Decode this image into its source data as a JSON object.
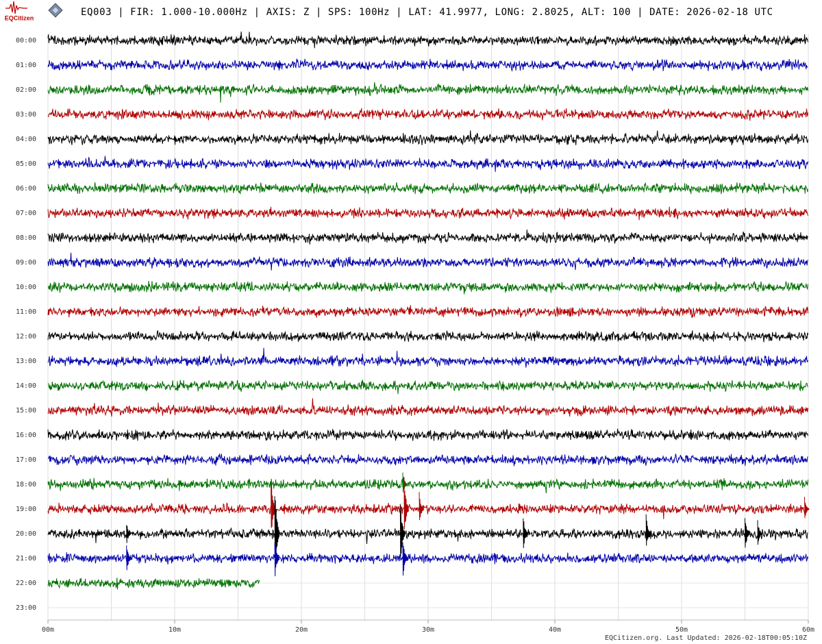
{
  "logo": "EQCitizen",
  "chart_data": {
    "type": "helicorder",
    "title": "EQ003 | FIR: 1.000-10.000Hz | AXIS: Z | SPS: 100Hz | LAT: 41.9977, LONG: 2.8025, ALT: 100 | DATE: 2026-02-18 UTC",
    "footer": "EQCitizen.org. Last Updated: 2026-02-18T00:05:10Z",
    "xlim": [
      0,
      60
    ],
    "xticks": [
      {
        "value": 0,
        "label": "00m"
      },
      {
        "value": 10,
        "label": "10m"
      },
      {
        "value": 20,
        "label": "20m"
      },
      {
        "value": 30,
        "label": "30m"
      },
      {
        "value": 40,
        "label": "40m"
      },
      {
        "value": 50,
        "label": "50m"
      },
      {
        "value": 60,
        "label": "60m"
      }
    ],
    "grid_step": 5,
    "rows": [
      {
        "label": "00:00",
        "color": "#000000",
        "span": [
          0,
          60
        ]
      },
      {
        "label": "01:00",
        "color": "#0000aa",
        "span": [
          0,
          60
        ]
      },
      {
        "label": "02:00",
        "color": "#007000",
        "span": [
          0,
          60
        ]
      },
      {
        "label": "03:00",
        "color": "#b00000",
        "span": [
          0,
          60
        ]
      },
      {
        "label": "04:00",
        "color": "#000000",
        "span": [
          0,
          60
        ]
      },
      {
        "label": "05:00",
        "color": "#0000aa",
        "span": [
          0,
          60
        ]
      },
      {
        "label": "06:00",
        "color": "#007000",
        "span": [
          0,
          60
        ]
      },
      {
        "label": "07:00",
        "color": "#b00000",
        "span": [
          0,
          60
        ]
      },
      {
        "label": "08:00",
        "color": "#000000",
        "span": [
          0,
          60
        ]
      },
      {
        "label": "09:00",
        "color": "#0000aa",
        "span": [
          0,
          60
        ]
      },
      {
        "label": "10:00",
        "color": "#007000",
        "span": [
          0,
          60
        ]
      },
      {
        "label": "11:00",
        "color": "#b00000",
        "span": [
          0,
          60
        ]
      },
      {
        "label": "12:00",
        "color": "#000000",
        "span": [
          0,
          60
        ]
      },
      {
        "label": "13:00",
        "color": "#0000aa",
        "span": [
          0,
          60
        ]
      },
      {
        "label": "14:00",
        "color": "#007000",
        "span": [
          0,
          60
        ]
      },
      {
        "label": "15:00",
        "color": "#b00000",
        "span": [
          0,
          60
        ]
      },
      {
        "label": "16:00",
        "color": "#000000",
        "span": [
          0,
          60
        ]
      },
      {
        "label": "17:00",
        "color": "#0000aa",
        "span": [
          0,
          60
        ]
      },
      {
        "label": "18:00",
        "color": "#007000",
        "span": [
          0,
          60
        ]
      },
      {
        "label": "19:00",
        "color": "#b00000",
        "span": [
          0,
          60
        ]
      },
      {
        "label": "20:00",
        "color": "#000000",
        "span": [
          0,
          60
        ]
      },
      {
        "label": "21:00",
        "color": "#0000aa",
        "span": [
          0,
          60
        ]
      },
      {
        "label": "22:00",
        "color": "#007000",
        "span": [
          0,
          16.7
        ]
      },
      {
        "label": "23:00",
        "color": "#000000",
        "span": null
      }
    ],
    "events": [
      {
        "row": 19,
        "x": 17.6,
        "amp": 1.5
      },
      {
        "row": 20,
        "x": 17.9,
        "amp": 2.5
      },
      {
        "row": 21,
        "x": 17.9,
        "amp": 1.0
      },
      {
        "row": 18,
        "x": 28.0,
        "amp": 0.5
      },
      {
        "row": 19,
        "x": 28.1,
        "amp": 1.4
      },
      {
        "row": 20,
        "x": 27.8,
        "amp": 1.6
      },
      {
        "row": 21,
        "x": 28.0,
        "amp": 1.0
      },
      {
        "row": 19,
        "x": 29.3,
        "amp": 0.7
      },
      {
        "row": 20,
        "x": 6.2,
        "amp": 0.5
      },
      {
        "row": 21,
        "x": 6.2,
        "amp": 0.7
      },
      {
        "row": 20,
        "x": 37.5,
        "amp": 0.8
      },
      {
        "row": 20,
        "x": 47.2,
        "amp": 0.8
      },
      {
        "row": 20,
        "x": 55.0,
        "amp": 0.9
      },
      {
        "row": 20,
        "x": 56.0,
        "amp": 0.6
      },
      {
        "row": 19,
        "x": 59.7,
        "amp": 0.5
      }
    ]
  }
}
